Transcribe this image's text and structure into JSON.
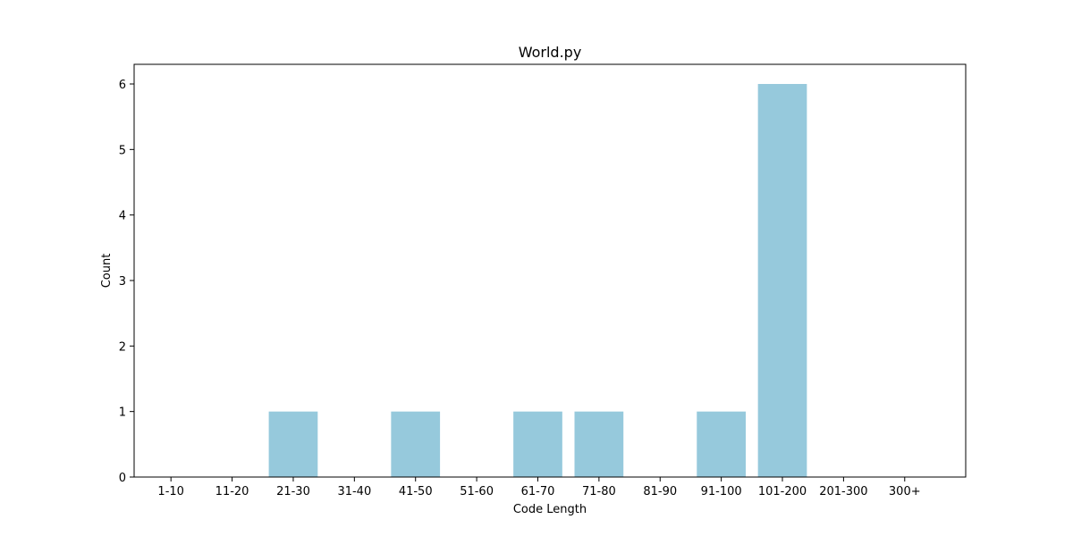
{
  "chart_data": {
    "type": "bar",
    "title": "World.py",
    "xlabel": "Code Length",
    "ylabel": "Count",
    "categories": [
      "1-10",
      "11-20",
      "21-30",
      "31-40",
      "41-50",
      "51-60",
      "61-70",
      "71-80",
      "81-90",
      "91-100",
      "101-200",
      "201-300",
      "300+"
    ],
    "values": [
      0,
      0,
      1,
      0,
      1,
      0,
      1,
      1,
      0,
      1,
      6,
      0,
      0
    ],
    "ylim": [
      0,
      6.3
    ],
    "yticks": [
      0,
      1,
      2,
      3,
      4,
      5,
      6
    ],
    "grid": false,
    "legend": "none",
    "bar_color": "#96c9dc",
    "axis_color": "#000000"
  }
}
